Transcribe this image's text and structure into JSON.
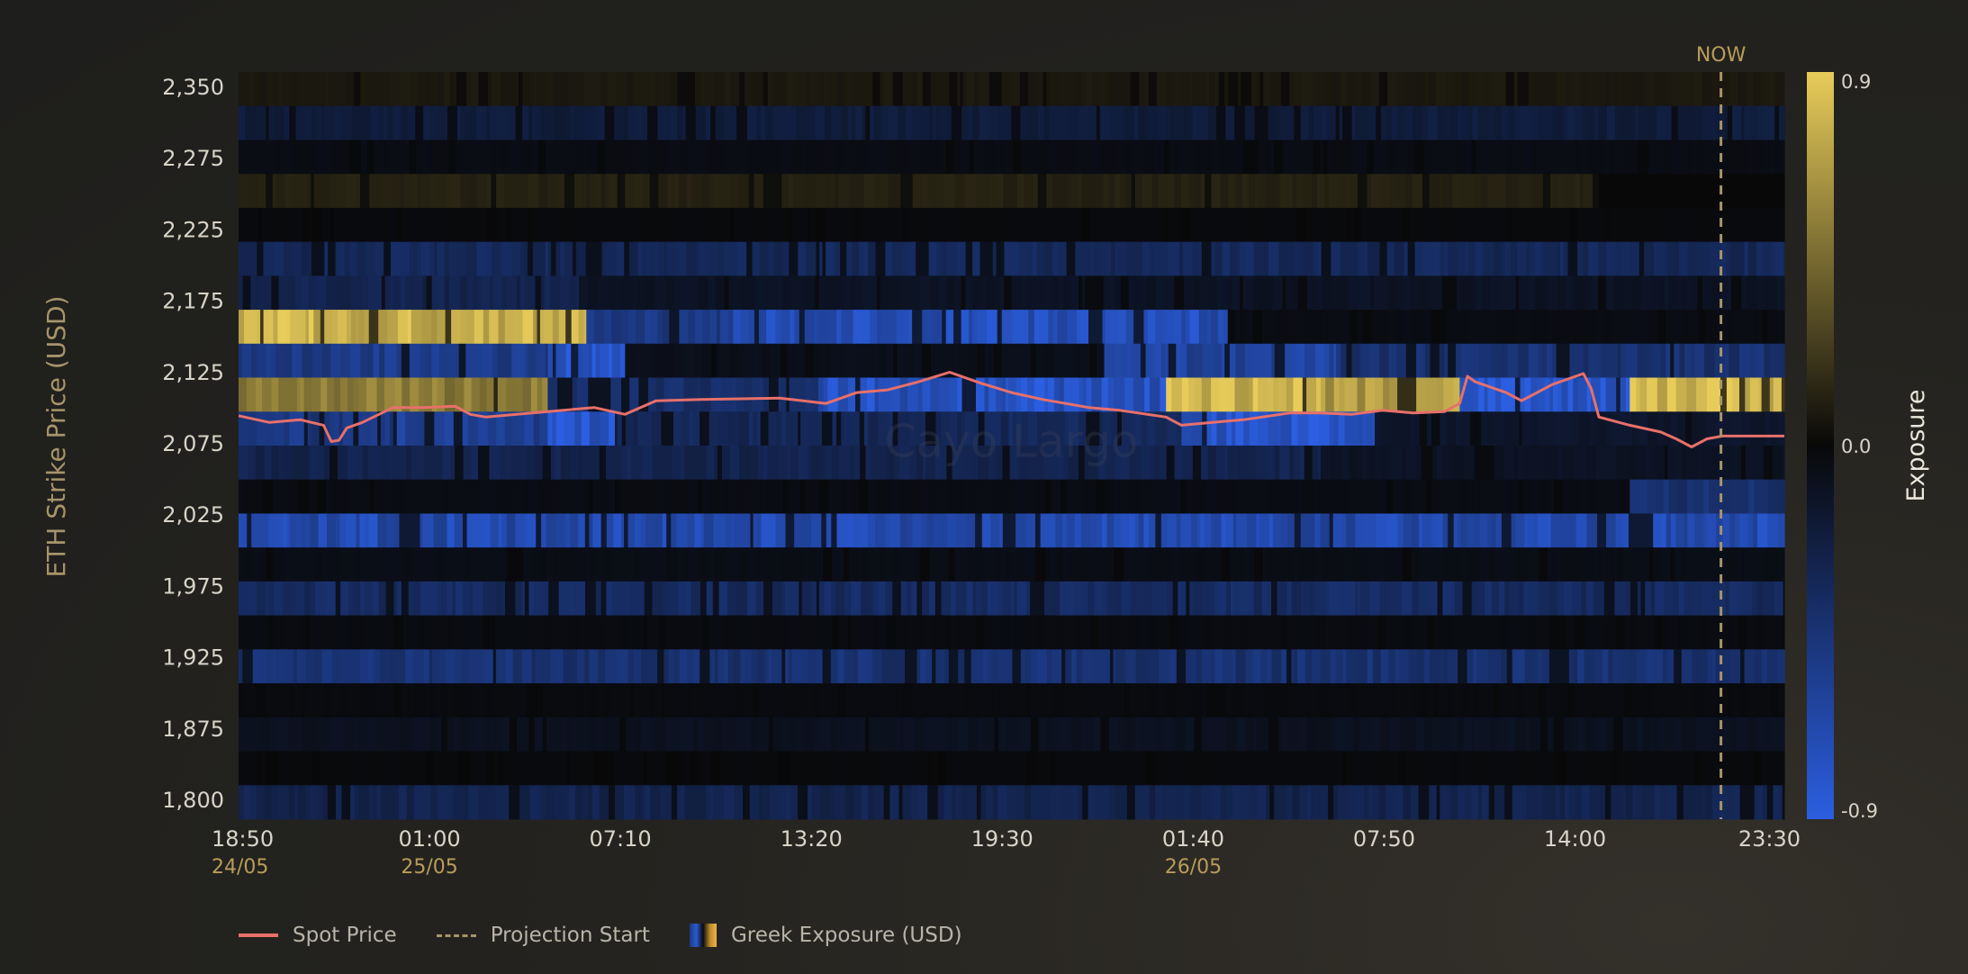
{
  "chart_data": {
    "type": "heatmap",
    "ylabel": "ETH Strike Price (USD)",
    "colorbar_label": "Exposure",
    "colorbar_ticks": [
      "0.9",
      "0.0",
      "-0.9"
    ],
    "color_range": [
      -0.9,
      0.9
    ],
    "now_label": "NOW",
    "now_position": 0.959,
    "y_tick_labels": [
      "2,350",
      "2,275",
      "2,225",
      "2,175",
      "2,125",
      "2,075",
      "2,025",
      "1,975",
      "1,925",
      "1,875",
      "1,800"
    ],
    "y_tick_values": [
      2350,
      2275,
      2225,
      2175,
      2125,
      2075,
      2025,
      1975,
      1925,
      1875,
      1800
    ],
    "x_ticks": [
      {
        "t": 0.0,
        "time": "18:50",
        "date": "24/05"
      },
      {
        "t": 0.1235,
        "time": "01:00",
        "date": "25/05"
      },
      {
        "t": 0.247,
        "time": "07:10",
        "date": ""
      },
      {
        "t": 0.3705,
        "time": "13:20",
        "date": ""
      },
      {
        "t": 0.494,
        "time": "19:30",
        "date": ""
      },
      {
        "t": 0.6176,
        "time": "01:40",
        "date": "26/05"
      },
      {
        "t": 0.7411,
        "time": "07:50",
        "date": ""
      },
      {
        "t": 0.8646,
        "time": "14:00",
        "date": ""
      },
      {
        "t": 1.0,
        "time": "23:30",
        "date": ""
      }
    ],
    "strike_rows": [
      2350,
      2325,
      2300,
      2275,
      2250,
      2225,
      2200,
      2175,
      2150,
      2125,
      2100,
      2075,
      2050,
      2025,
      2000,
      1975,
      1950,
      1925,
      1900,
      1875,
      1850,
      1800
    ],
    "rows": [
      {
        "strike": 2350,
        "segments": [
          [
            0,
            1,
            0.08
          ]
        ]
      },
      {
        "strike": 2325,
        "segments": [
          [
            0,
            1,
            -0.22
          ]
        ]
      },
      {
        "strike": 2300,
        "segments": [
          [
            0,
            1,
            -0.05
          ]
        ]
      },
      {
        "strike": 2275,
        "segments": [
          [
            0,
            0.88,
            0.12
          ],
          [
            0.88,
            1,
            0.0
          ]
        ]
      },
      {
        "strike": 2250,
        "segments": [
          [
            0,
            1,
            -0.02
          ]
        ]
      },
      {
        "strike": 2225,
        "segments": [
          [
            0,
            1,
            -0.35
          ]
        ]
      },
      {
        "strike": 2200,
        "segments": [
          [
            0,
            0.22,
            -0.3
          ],
          [
            0.22,
            1,
            -0.12
          ]
        ]
      },
      {
        "strike": 2175,
        "segments": [
          [
            0,
            0.225,
            0.8
          ],
          [
            0.225,
            0.32,
            -0.55
          ],
          [
            0.32,
            0.64,
            -0.75
          ],
          [
            0.64,
            1,
            -0.05
          ]
        ]
      },
      {
        "strike": 2150,
        "segments": [
          [
            0,
            0.2,
            -0.55
          ],
          [
            0.2,
            0.25,
            -0.85
          ],
          [
            0.25,
            0.56,
            -0.08
          ],
          [
            0.56,
            0.71,
            -0.65
          ],
          [
            0.71,
            1,
            -0.45
          ]
        ]
      },
      {
        "strike": 2125,
        "segments": [
          [
            0,
            0.2,
            0.55
          ],
          [
            0.2,
            0.375,
            -0.4
          ],
          [
            0.375,
            0.6,
            -0.8
          ],
          [
            0.6,
            0.7,
            0.85
          ],
          [
            0.7,
            0.79,
            0.7
          ],
          [
            0.79,
            0.9,
            -0.85
          ],
          [
            0.9,
            1,
            0.85
          ]
        ]
      },
      {
        "strike": 2100,
        "segments": [
          [
            0,
            0.045,
            -0.55
          ],
          [
            0.045,
            0.1,
            -0.5
          ],
          [
            0.1,
            0.2,
            -0.6
          ],
          [
            0.2,
            0.245,
            -0.85
          ],
          [
            0.245,
            0.61,
            -0.35
          ],
          [
            0.61,
            0.735,
            -0.85
          ],
          [
            0.735,
            1,
            -0.15
          ]
        ]
      },
      {
        "strike": 2075,
        "segments": [
          [
            0,
            0.7,
            -0.3
          ],
          [
            0.7,
            1,
            -0.12
          ]
        ]
      },
      {
        "strike": 2050,
        "segments": [
          [
            0,
            0.9,
            -0.05
          ],
          [
            0.9,
            1,
            -0.45
          ]
        ]
      },
      {
        "strike": 2025,
        "segments": [
          [
            0,
            1,
            -0.72
          ]
        ]
      },
      {
        "strike": 2000,
        "segments": [
          [
            0,
            1,
            -0.06
          ]
        ]
      },
      {
        "strike": 1975,
        "segments": [
          [
            0,
            1,
            -0.38
          ]
        ]
      },
      {
        "strike": 1950,
        "segments": [
          [
            0,
            1,
            -0.04
          ]
        ]
      },
      {
        "strike": 1925,
        "segments": [
          [
            0,
            1,
            -0.45
          ]
        ]
      },
      {
        "strike": 1900,
        "segments": [
          [
            0,
            1,
            -0.03
          ]
        ]
      },
      {
        "strike": 1875,
        "segments": [
          [
            0,
            1,
            -0.1
          ]
        ]
      },
      {
        "strike": 1850,
        "segments": [
          [
            0,
            1,
            -0.02
          ]
        ]
      },
      {
        "strike": 1800,
        "segments": [
          [
            0,
            1,
            -0.3
          ]
        ]
      }
    ],
    "spot_price": {
      "name": "Spot Price",
      "t": [
        0,
        0.02,
        0.04,
        0.055,
        0.06,
        0.065,
        0.07,
        0.08,
        0.1,
        0.12,
        0.14,
        0.15,
        0.16,
        0.2,
        0.23,
        0.25,
        0.27,
        0.3,
        0.35,
        0.38,
        0.4,
        0.42,
        0.44,
        0.46,
        0.48,
        0.5,
        0.52,
        0.55,
        0.57,
        0.6,
        0.61,
        0.63,
        0.65,
        0.68,
        0.7,
        0.72,
        0.74,
        0.76,
        0.78,
        0.79,
        0.795,
        0.8,
        0.82,
        0.83,
        0.85,
        0.87,
        0.875,
        0.88,
        0.9,
        0.92,
        0.93,
        0.94,
        0.95,
        0.96,
        1.0
      ],
      "values": [
        2097,
        2092,
        2094,
        2090,
        2078,
        2079,
        2088,
        2092,
        2103,
        2103,
        2104,
        2098,
        2096,
        2100,
        2103,
        2098,
        2108,
        2109,
        2110,
        2106,
        2114,
        2116,
        2122,
        2129,
        2121,
        2114,
        2109,
        2103,
        2101,
        2096,
        2090,
        2092,
        2094,
        2099,
        2099,
        2098,
        2101,
        2099,
        2100,
        2106,
        2126,
        2122,
        2114,
        2108,
        2120,
        2128,
        2117,
        2096,
        2090,
        2085,
        2080,
        2074,
        2080,
        2082,
        2082
      ]
    },
    "legend": [
      {
        "label": "Spot Price",
        "kind": "line",
        "color": "#e8706a"
      },
      {
        "label": "Projection Start",
        "kind": "dashed",
        "color": "#a8946a"
      },
      {
        "label": "Greek Exposure (USD)",
        "kind": "gradient"
      }
    ],
    "watermark": "Cayo Largo",
    "colors": {
      "positive": "#e8cc5a",
      "zero": "#080808",
      "negative": "#2b5ee0",
      "spot": "#e8706a",
      "now_line": "#a8946a",
      "ylabel": "#a8946a",
      "date_label": "#b89c5a",
      "tick": "#d9d4c8"
    }
  }
}
